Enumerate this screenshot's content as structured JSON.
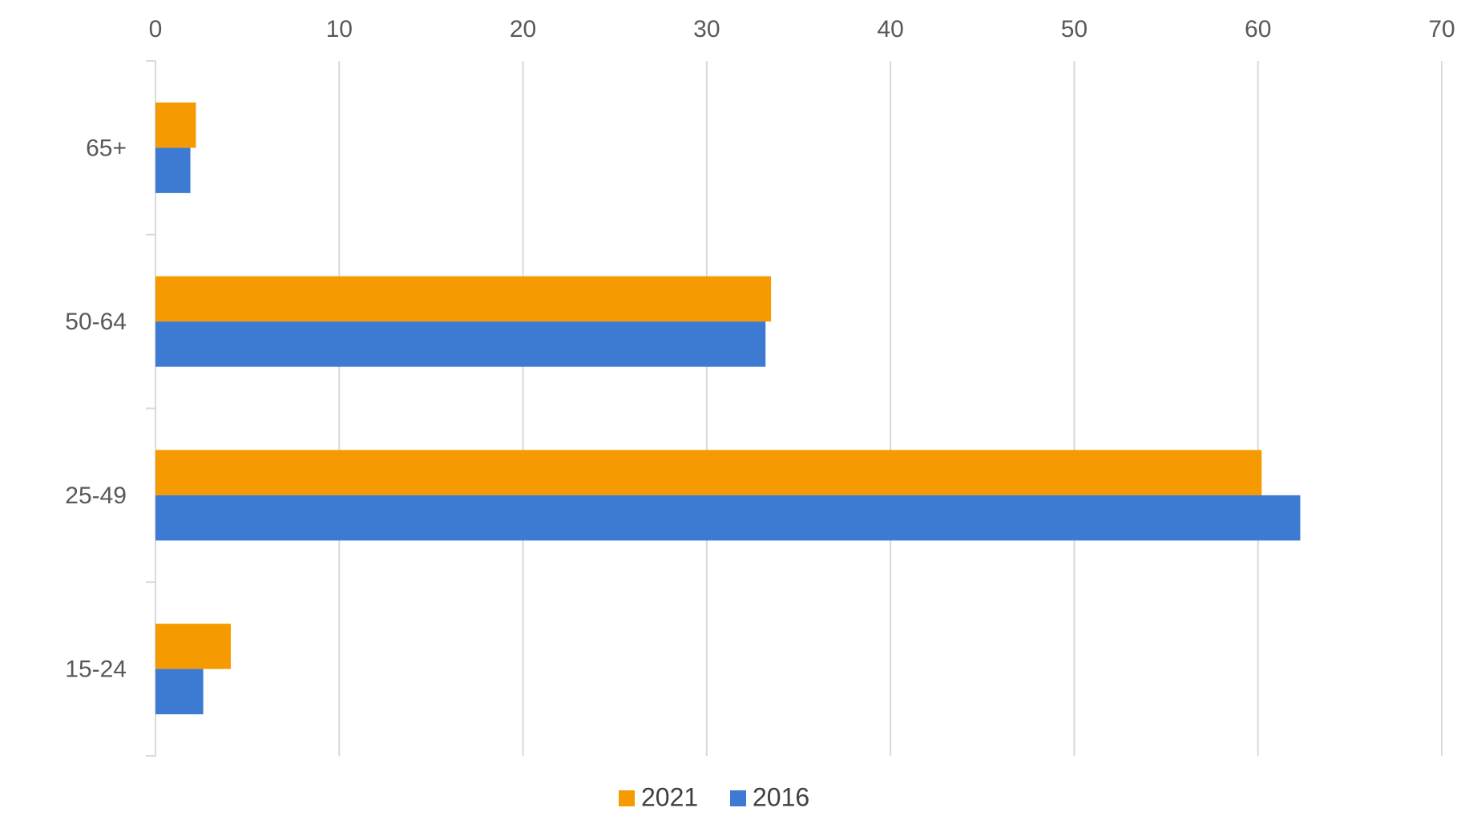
{
  "chart_data": {
    "type": "bar",
    "orientation": "horizontal",
    "categories": [
      "15-24",
      "25-49",
      "50-64",
      "65+"
    ],
    "series": [
      {
        "name": "2021",
        "color": "#f59a00",
        "values": [
          4.1,
          60.2,
          33.5,
          2.2
        ]
      },
      {
        "name": "2016",
        "color": "#3c7bd1",
        "values": [
          2.6,
          62.3,
          33.2,
          1.9
        ]
      }
    ],
    "xticks": [
      "0",
      "10",
      "20",
      "30",
      "40",
      "50",
      "60",
      "70"
    ],
    "xlim": [
      0,
      70
    ],
    "x_axis_position": "top",
    "grid": true,
    "gridline_color": "#d9d9d9",
    "legend_position": "bottom"
  }
}
